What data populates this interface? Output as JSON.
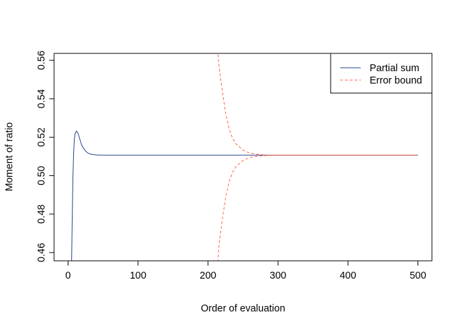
{
  "chart_data": {
    "type": "line",
    "title": "",
    "xlabel": "Order of evaluation",
    "ylabel": "Moment of ratio",
    "xlim": [
      -20,
      520
    ],
    "ylim": [
      0.4557,
      0.5636
    ],
    "xticks": [
      0,
      100,
      200,
      300,
      400,
      500
    ],
    "yticks": [
      0.46,
      0.48,
      0.5,
      0.52,
      0.54,
      0.56
    ],
    "ytick_labels": [
      "0.46",
      "0.48",
      "0.50",
      "0.52",
      "0.54",
      "0.56"
    ],
    "xtick_labels": [
      "0",
      "100",
      "200",
      "300",
      "400",
      "500"
    ],
    "grid": false,
    "legend_position": "top-right",
    "series": [
      {
        "name": "Partial sum",
        "color": "#27408B",
        "style": "solid",
        "x": [
          5,
          6,
          7,
          8,
          9,
          10,
          12,
          14,
          16,
          18,
          20,
          24,
          28,
          32,
          40,
          50,
          500
        ],
        "y": [
          0.455,
          0.48,
          0.5,
          0.512,
          0.519,
          0.522,
          0.5232,
          0.5222,
          0.52,
          0.5175,
          0.5155,
          0.5132,
          0.5118,
          0.5112,
          0.5108,
          0.5106,
          0.5106
        ]
      },
      {
        "name": "Error bound",
        "color": "#FF6347",
        "style": "dashed",
        "parts": [
          {
            "x": [
              213,
              216,
              220,
              225,
              230,
              235,
              240,
              250,
              260,
              270,
              280,
              300,
              500
            ],
            "y": [
              0.568,
              0.5565,
              0.545,
              0.533,
              0.5245,
              0.5195,
              0.5165,
              0.5133,
              0.5117,
              0.5111,
              0.5108,
              0.5106,
              0.5106
            ]
          },
          {
            "x": [
              214,
              216,
              220,
              225,
              230,
              235,
              240,
              250,
              260,
              270,
              280,
              300,
              500
            ],
            "y": [
              0.455,
              0.4647,
              0.4762,
              0.4882,
              0.4967,
              0.5017,
              0.5047,
              0.5079,
              0.5095,
              0.5101,
              0.5104,
              0.5106,
              0.5106
            ]
          }
        ]
      }
    ]
  }
}
